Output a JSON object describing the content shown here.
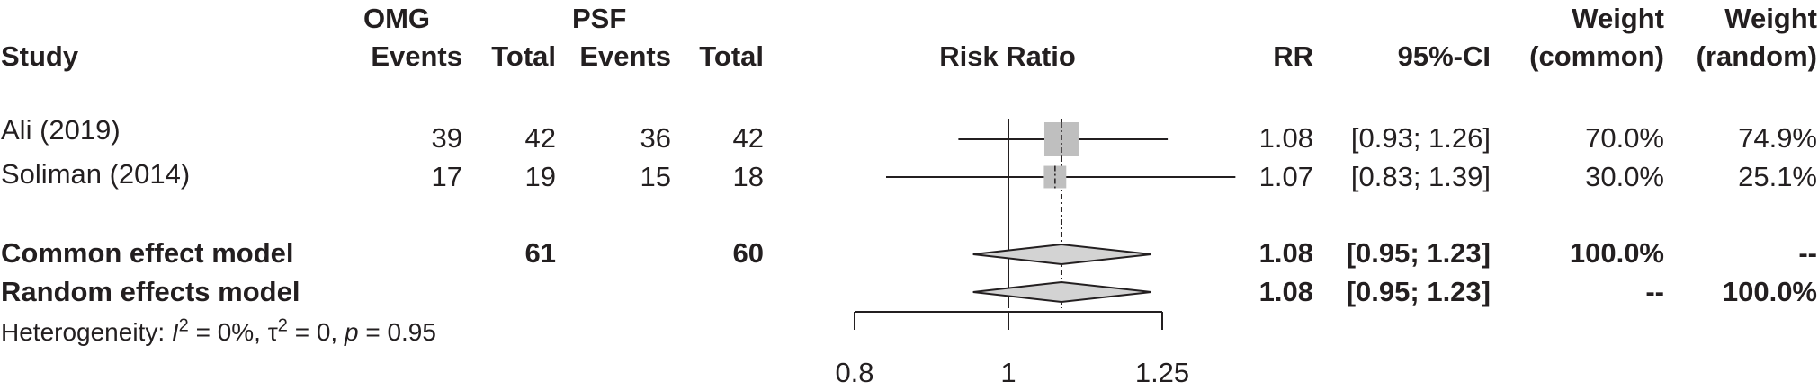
{
  "headers": {
    "group1": "OMG",
    "group2": "PSF",
    "study": "Study",
    "events1": "Events",
    "total1": "Total",
    "events2": "Events",
    "total2": "Total",
    "risk_ratio": "Risk Ratio",
    "rr": "RR",
    "ci": "95%-CI",
    "weight_common_1": "Weight",
    "weight_common_2": "(common)",
    "weight_random_1": "Weight",
    "weight_random_2": "(random)"
  },
  "studies": [
    {
      "study": "Ali (2019)",
      "events1": "39",
      "total1": "42",
      "events2": "36",
      "total2": "42",
      "rr": "1.08",
      "ci": "[0.93; 1.26]",
      "w_common": "70.0%",
      "w_random": "74.9%"
    },
    {
      "study": "Soliman (2014)",
      "events1": "17",
      "total1": "19",
      "events2": "15",
      "total2": "18",
      "rr": "1.07",
      "ci": "[0.83; 1.39]",
      "w_common": "30.0%",
      "w_random": "25.1%"
    }
  ],
  "models": [
    {
      "label": "Common effect model",
      "total1": "61",
      "total2": "60",
      "rr": "1.08",
      "ci": "[0.95; 1.23]",
      "w_common": "100.0%",
      "w_random": "--"
    },
    {
      "label": "Random effects model",
      "total1": "",
      "total2": "",
      "rr": "1.08",
      "ci": "[0.95; 1.23]",
      "w_common": "--",
      "w_random": "100.0%"
    }
  ],
  "heterogeneity": {
    "prefix": "Heterogeneity: ",
    "i2_sym": "I",
    "i2_val": " = 0%, ",
    "tau_sym": "τ",
    "tau_val": " = 0, ",
    "p_sym": "p",
    "p_val": " = 0.95"
  },
  "colors": {
    "ink": "#231f20",
    "box": "#bfbfbf",
    "diamond": "#d3d3d3"
  },
  "chart_data": {
    "type": "forest",
    "xlabel": "Risk Ratio",
    "x_scale": "log",
    "xlim": [
      0.8,
      1.25
    ],
    "ticks": [
      0.8,
      1,
      1.25
    ],
    "tick_labels": [
      "0.8",
      "1",
      "1.25"
    ],
    "reference_line": 1,
    "pooled_line": 1.08,
    "studies": [
      {
        "name": "Ali (2019)",
        "rr": 1.08,
        "lower": 0.93,
        "upper": 1.26,
        "weight": 70.0,
        "arrow_right": true
      },
      {
        "name": "Soliman (2014)",
        "rr": 1.07,
        "lower": 0.83,
        "upper": 1.39,
        "weight": 30.0,
        "arrow_right": true
      }
    ],
    "pooled": [
      {
        "name": "Common effect model",
        "rr": 1.08,
        "lower": 0.95,
        "upper": 1.23
      },
      {
        "name": "Random effects model",
        "rr": 1.08,
        "lower": 0.95,
        "upper": 1.23
      }
    ]
  }
}
